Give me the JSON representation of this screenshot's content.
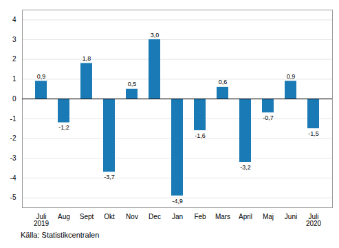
{
  "chart_data": {
    "type": "bar",
    "categories": [
      "Juli\n2019",
      "Aug",
      "Sept",
      "Okt",
      "Nov",
      "Dec",
      "Jan",
      "Feb",
      "Mars",
      "April",
      "Maj",
      "Juni",
      "Juli\n2020"
    ],
    "values": [
      0.9,
      -1.2,
      1.8,
      -3.7,
      0.5,
      3.0,
      -4.9,
      -1.6,
      0.6,
      -3.2,
      -0.7,
      0.9,
      -1.5
    ],
    "value_labels": [
      "0,9",
      "-1,2",
      "1,8",
      "-3,7",
      "0,5",
      "3,0",
      "-4,9",
      "-1,6",
      "0,6",
      "-3,2",
      "-0,7",
      "0,9",
      "-1,5"
    ],
    "data_labels": true,
    "color": "#1a7ab5",
    "ylim": [
      -5.5,
      4.5
    ],
    "yticks": [
      -5,
      -4,
      -3,
      -2,
      -1,
      0,
      1,
      2,
      3,
      4
    ],
    "grid": true,
    "source": "Källa: Statistikcentralen"
  }
}
